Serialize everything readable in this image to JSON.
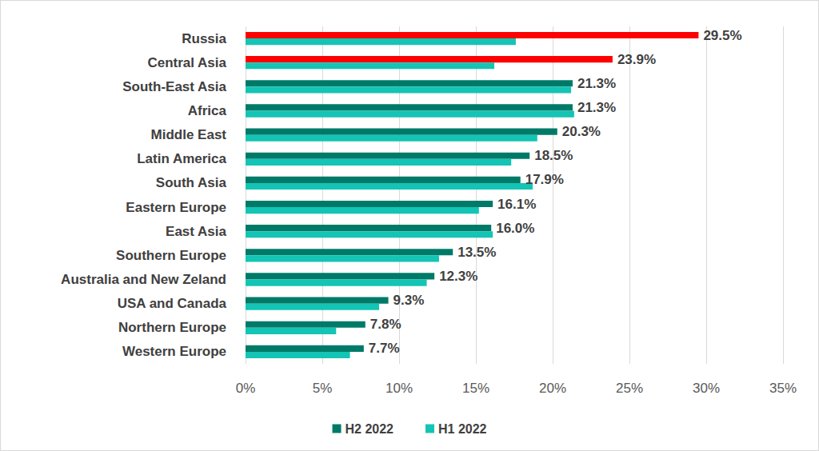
{
  "chart_data": {
    "type": "bar",
    "orientation": "horizontal",
    "categories": [
      "Russia",
      "Central Asia",
      "South-East Asia",
      "Africa",
      "Middle East",
      "Latin America",
      "South Asia",
      "Eastern Europe",
      "East Asia",
      "Southern Europe",
      "Australia and New Zeland",
      "USA and Canada",
      "Northern Europe",
      "Western Europe"
    ],
    "series": [
      {
        "name": "H2 2022",
        "color": "#007a68",
        "colors": [
          "#ff0000",
          "#ff0000",
          "#007a68",
          "#007a68",
          "#007a68",
          "#007a68",
          "#007a68",
          "#007a68",
          "#007a68",
          "#007a68",
          "#007a68",
          "#007a68",
          "#007a68",
          "#007a68"
        ],
        "values": [
          29.5,
          23.9,
          21.3,
          21.3,
          20.3,
          18.5,
          17.9,
          16.1,
          16.0,
          13.5,
          12.3,
          9.3,
          7.8,
          7.7
        ],
        "data_labels": true,
        "value_labels": [
          "29.5%",
          "23.9%",
          "21.3%",
          "21.3%",
          "20.3%",
          "18.5%",
          "17.9%",
          "16.1%",
          "16.0%",
          "13.5%",
          "12.3%",
          "9.3%",
          "7.8%",
          "7.7%"
        ]
      },
      {
        "name": "H1 2022",
        "color": "#14c4b4",
        "values": [
          17.6,
          16.2,
          21.2,
          21.4,
          19.0,
          17.3,
          18.7,
          15.2,
          16.1,
          12.6,
          11.8,
          8.7,
          5.9,
          6.8
        ],
        "data_labels": false
      }
    ],
    "xlim": [
      0,
      35
    ],
    "xticks": [
      {
        "value": 0,
        "label": "0%"
      },
      {
        "value": 5,
        "label": "5%"
      },
      {
        "value": 10,
        "label": "10%"
      },
      {
        "value": 15,
        "label": "15%"
      },
      {
        "value": 20,
        "label": "20%"
      },
      {
        "value": 25,
        "label": "25%"
      },
      {
        "value": 30,
        "label": "30%"
      },
      {
        "value": 35,
        "label": "35%"
      }
    ],
    "grid": true,
    "legend": "bottom"
  }
}
